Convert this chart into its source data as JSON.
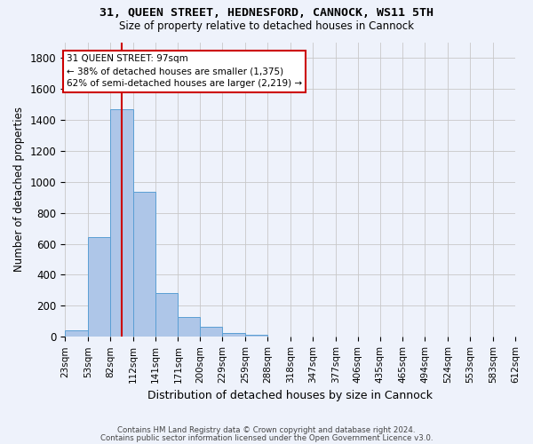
{
  "title": "31, QUEEN STREET, HEDNESFORD, CANNOCK, WS11 5TH",
  "subtitle": "Size of property relative to detached houses in Cannock",
  "xlabel": "Distribution of detached houses by size in Cannock",
  "ylabel": "Number of detached properties",
  "footnote1": "Contains HM Land Registry data © Crown copyright and database right 2024.",
  "footnote2": "Contains public sector information licensed under the Open Government Licence v3.0.",
  "annotation_line1": "31 QUEEN STREET: 97sqm",
  "annotation_line2": "← 38% of detached houses are smaller (1,375)",
  "annotation_line3": "62% of semi-detached houses are larger (2,219) →",
  "bar_color": "#aec6e8",
  "bar_edge_color": "#5a9fd4",
  "line_color": "#cc0000",
  "background_color": "#eef2fb",
  "grid_color": "#c8c8c8",
  "bins": [
    23,
    53,
    82,
    112,
    141,
    171,
    200,
    229,
    259,
    288,
    318,
    347,
    377,
    406,
    435,
    465,
    494,
    524,
    553,
    583,
    612
  ],
  "values": [
    40,
    645,
    1470,
    935,
    285,
    125,
    65,
    25,
    15,
    0,
    0,
    0,
    0,
    0,
    0,
    0,
    0,
    0,
    0,
    0
  ],
  "property_size": 97,
  "ylim": [
    0,
    1900
  ],
  "yticks": [
    0,
    200,
    400,
    600,
    800,
    1000,
    1200,
    1400,
    1600,
    1800
  ]
}
